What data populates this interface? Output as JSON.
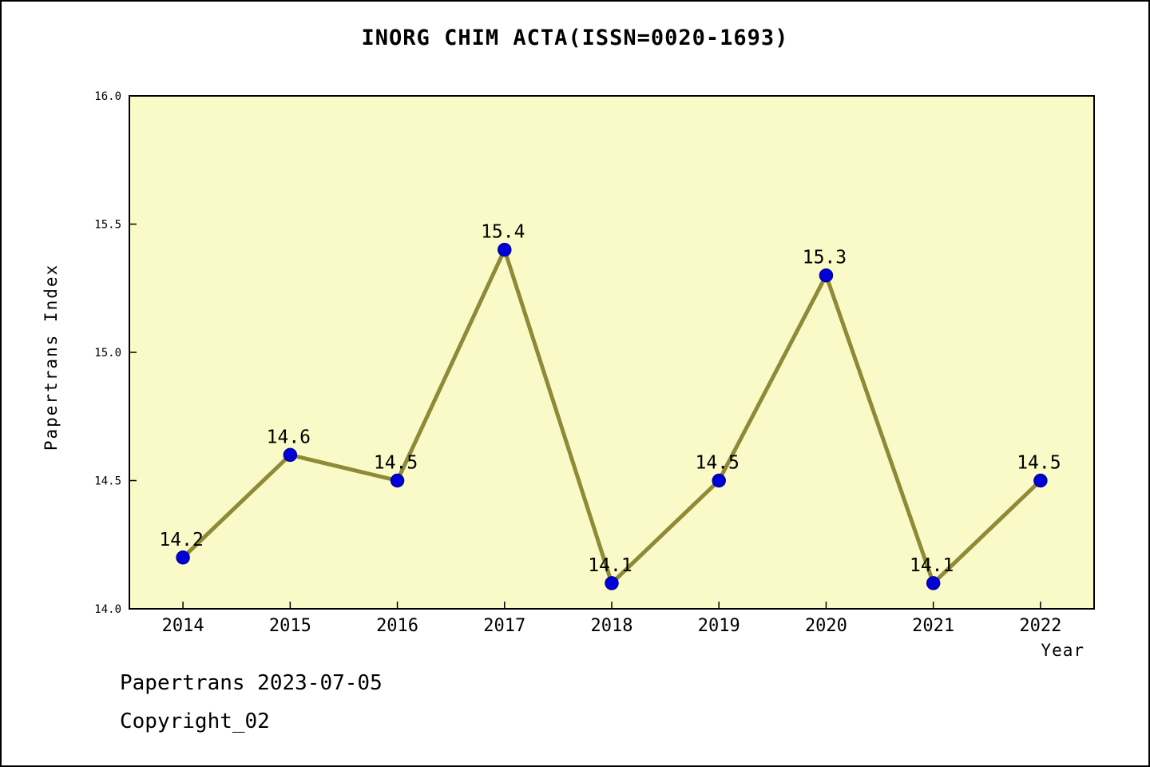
{
  "title": "INORG CHIM ACTA(ISSN=0020-1693)",
  "footer": {
    "line1": "Papertrans 2023-07-05",
    "line2": "Copyright_02"
  },
  "chart_data": {
    "type": "line",
    "title": "INORG CHIM ACTA(ISSN=0020-1693)",
    "categories": [
      "2014",
      "2015",
      "2016",
      "2017",
      "2018",
      "2019",
      "2020",
      "2021",
      "2022"
    ],
    "values": [
      14.2,
      14.6,
      14.5,
      15.4,
      14.1,
      14.5,
      15.3,
      14.1,
      14.5
    ],
    "point_labels": [
      "14.2",
      "14.6",
      "14.5",
      "15.4",
      "14.1",
      "14.5",
      "15.3",
      "14.1",
      "14.5"
    ],
    "xlabel": "Year",
    "ylabel": "Papertrans Index",
    "ylim": [
      14.0,
      16.0
    ],
    "yticks": [
      14.0,
      14.5,
      15.0,
      15.5,
      16.0
    ],
    "legend": "none",
    "grid": "off",
    "colors": {
      "plot_background": "#FAFAC8",
      "line": "#8F8A38",
      "marker_fill": "#0000D8",
      "marker_edge": "#0000A0",
      "axis": "#000000",
      "text": "#000000"
    }
  }
}
